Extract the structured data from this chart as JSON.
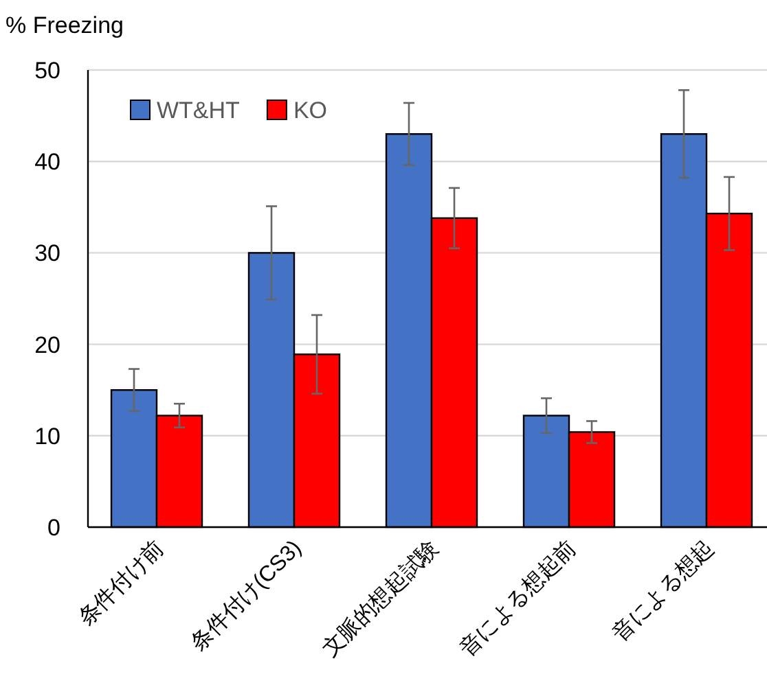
{
  "chart_data": {
    "type": "bar",
    "ylabel": "% Freezing",
    "categories": [
      "条件付け前",
      "条件付け(CS3)",
      "文脈的想起試験",
      "音による想起前",
      "音による想起"
    ],
    "series": [
      {
        "name": "WT&HT",
        "color": "#4472c4",
        "values": [
          15,
          30,
          43,
          12.2,
          43
        ],
        "errors": [
          2.3,
          5.1,
          3.4,
          1.9,
          4.8
        ]
      },
      {
        "name": "KO",
        "color": "#ff0000",
        "values": [
          12.2,
          18.9,
          33.8,
          10.4,
          34.3
        ],
        "errors": [
          1.3,
          4.3,
          3.3,
          1.2,
          4.0
        ]
      }
    ],
    "ylim": [
      0,
      50
    ],
    "yticks": [
      0,
      10,
      20,
      30,
      40,
      50
    ],
    "grid": "y",
    "legend": "top left"
  }
}
